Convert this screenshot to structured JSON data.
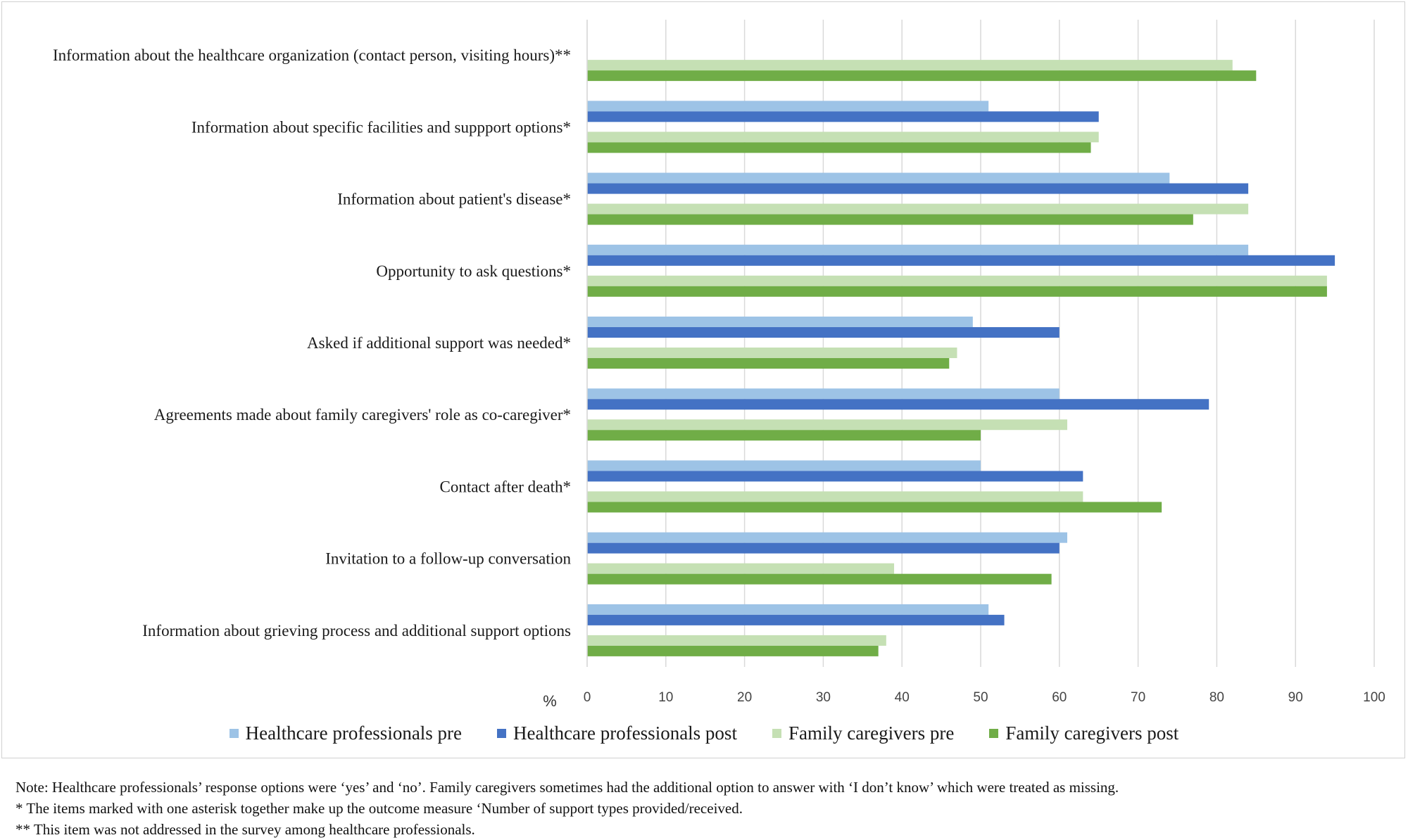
{
  "chart_data": {
    "type": "bar",
    "orientation": "horizontal",
    "unit_label": "%",
    "xlim": [
      0,
      100
    ],
    "xticks": [
      0,
      10,
      20,
      30,
      40,
      50,
      60,
      70,
      80,
      90,
      100
    ],
    "grid": true,
    "legend_position": "bottom",
    "categories": [
      "Information about the healthcare organization (contact person, visiting hours)**",
      "Information about specific facilities and suppport options*",
      "Information about patient's disease*",
      "Opportunity to ask questions*",
      "Asked if additional support was needed*",
      "Agreements made about family caregivers' role as co-caregiver*",
      "Contact after death*",
      "Invitation to a follow-up conversation",
      "Information about grieving process and additional support options"
    ],
    "series": [
      {
        "name": "Healthcare professionals pre",
        "color": "#9dc3e6",
        "values": [
          null,
          51,
          74,
          84,
          49,
          60,
          50,
          61,
          51
        ]
      },
      {
        "name": "Healthcare professionals post",
        "color": "#4472c4",
        "values": [
          null,
          65,
          84,
          95,
          60,
          79,
          63,
          60,
          53
        ]
      },
      {
        "name": "Family caregivers pre",
        "color": "#c5e0b4",
        "values": [
          82,
          65,
          84,
          94,
          47,
          61,
          63,
          39,
          38
        ]
      },
      {
        "name": "Family caregivers post",
        "color": "#70ad47",
        "values": [
          85,
          64,
          77,
          94,
          46,
          50,
          73,
          59,
          37
        ]
      }
    ]
  },
  "notes": [
    "Note: Healthcare professionals’ response options were ‘yes’ and ‘no’. Family caregivers sometimes had the additional option to answer with ‘I don’t know’ which were treated as missing.",
    "* The items marked with one asterisk together make up the outcome measure ‘Number of support types provided/received.",
    "** This item was not addressed in the survey among healthcare professionals."
  ]
}
